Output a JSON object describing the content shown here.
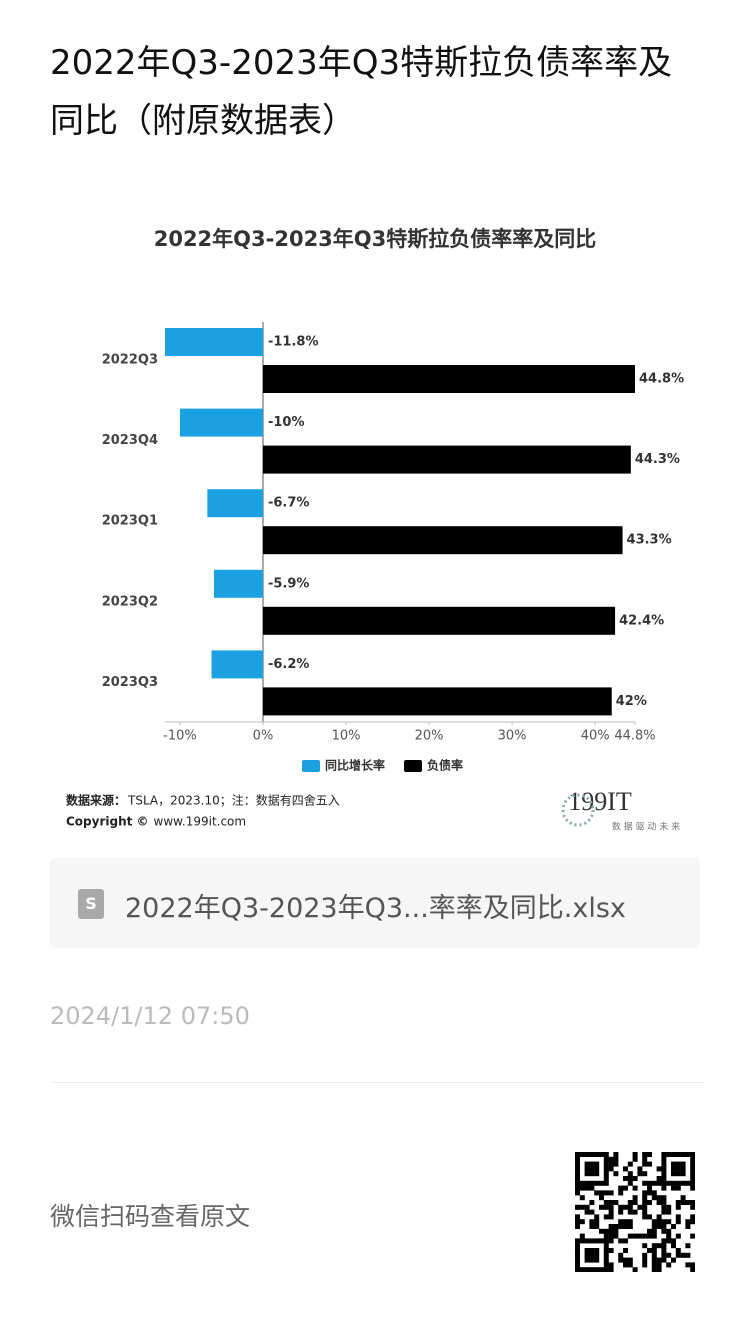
{
  "header": {
    "title": "2022年Q3-2023年Q3特斯拉负债率率及同比（附原数据表）"
  },
  "chart_data": {
    "type": "hbar",
    "title": "2022年Q3-2023年Q3特斯拉负债率率及同比",
    "categories": [
      "2022Q3",
      "2023Q4",
      "2023Q1",
      "2023Q2",
      "2023Q3"
    ],
    "series": [
      {
        "name": "同比增长率",
        "color": "#1ba1e2",
        "values": [
          -11.8,
          -10,
          -6.7,
          -5.9,
          -6.2
        ],
        "value_labels": [
          "-11.8%",
          "-10%",
          "-6.7%",
          "-5.9%",
          "-6.2%"
        ]
      },
      {
        "name": "负债率",
        "color": "#000000",
        "values": [
          44.8,
          44.3,
          43.3,
          42.4,
          42
        ],
        "value_labels": [
          "44.8%",
          "44.3%",
          "43.3%",
          "42.4%",
          "42%"
        ]
      }
    ],
    "xlim": [
      -11.8,
      44.8
    ],
    "xticks": [
      {
        "value": -10,
        "label": "-10%"
      },
      {
        "value": 0,
        "label": "0%"
      },
      {
        "value": 10,
        "label": "10%"
      },
      {
        "value": 20,
        "label": "20%"
      },
      {
        "value": 30,
        "label": "30%"
      },
      {
        "value": 40,
        "label": "40%"
      },
      {
        "value": 44.8,
        "label": "44.8%"
      }
    ],
    "legend": "bottom",
    "source_label": "数据来源：",
    "source_text": "TSLA，2023.10；注：数据有四舍五入",
    "copyright_label": "Copyright ©",
    "copyright_text": "www.199it.com",
    "logo": "199IT",
    "logo_slogan": "数 据 驱 动 未 来"
  },
  "attachment": {
    "icon_label": "S",
    "filename": "2022年Q3-2023年Q3...率率及同比.xlsx"
  },
  "date": "2024/1/12 07:50",
  "footer": {
    "scan_text": "微信扫码查看原文"
  }
}
